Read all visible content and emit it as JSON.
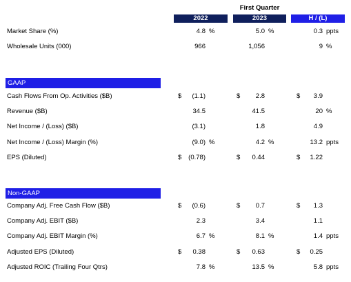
{
  "header": {
    "title": "First Quarter",
    "columns": [
      "2022",
      "2023",
      "H / (L)"
    ]
  },
  "sections": [
    {
      "rows": [
        {
          "label": "Market Share (%)",
          "cells": [
            {
              "v": "4.8",
              "unit": "%"
            },
            {
              "v": "5.0",
              "unit": "%"
            },
            {
              "v": "0.3",
              "unit": "ppts"
            }
          ]
        },
        {
          "label": "Wholesale Units (000)",
          "cells": [
            {
              "v": "966"
            },
            {
              "v": "1,056"
            },
            {
              "v": "9",
              "unit": "%"
            }
          ]
        }
      ]
    },
    {
      "title": "GAAP",
      "rows": [
        {
          "label": "Cash Flows From Op. Activities ($B)",
          "cells": [
            {
              "cur": "$",
              "v": "(1.1)"
            },
            {
              "cur": "$",
              "v": "2.8"
            },
            {
              "cur": "$",
              "v": "3.9"
            }
          ]
        },
        {
          "label": "Revenue ($B)",
          "cells": [
            {
              "v": "34.5"
            },
            {
              "v": "41.5"
            },
            {
              "v": "20",
              "unit": "%"
            }
          ]
        },
        {
          "label": "Net Income / (Loss) ($B)",
          "cells": [
            {
              "v": "(3.1)"
            },
            {
              "v": "1.8"
            },
            {
              "v": "4.9"
            }
          ]
        },
        {
          "label": "Net Income / (Loss) Margin (%)",
          "cells": [
            {
              "v": "(9.0)",
              "unit": "%"
            },
            {
              "v": "4.2",
              "unit": "%"
            },
            {
              "v": "13.2",
              "unit": "ppts"
            }
          ]
        },
        {
          "label": "EPS (Diluted)",
          "cells": [
            {
              "cur": "$",
              "v": "(0.78)"
            },
            {
              "cur": "$",
              "v": "0.44"
            },
            {
              "cur": "$",
              "v": "1.22"
            }
          ]
        }
      ]
    },
    {
      "title": "Non-GAAP",
      "rows": [
        {
          "label": "Company Adj. Free Cash Flow ($B)",
          "cells": [
            {
              "cur": "$",
              "v": "(0.6)"
            },
            {
              "cur": "$",
              "v": "0.7"
            },
            {
              "cur": "$",
              "v": "1.3"
            }
          ]
        },
        {
          "label": "Company Adj. EBIT ($B)",
          "cells": [
            {
              "v": "2.3"
            },
            {
              "v": "3.4"
            },
            {
              "v": "1.1"
            }
          ]
        },
        {
          "label": "Company Adj. EBIT Margin (%)",
          "cells": [
            {
              "v": "6.7",
              "unit": "%"
            },
            {
              "v": "8.1",
              "unit": "%"
            },
            {
              "v": "1.4",
              "unit": "ppts"
            }
          ]
        },
        {
          "label": "Adjusted EPS (Diluted)",
          "cells": [
            {
              "cur": "$",
              "v": "0.38"
            },
            {
              "cur": "$",
              "v": "0.63"
            },
            {
              "cur": "$",
              "v": "0.25"
            }
          ]
        },
        {
          "label": "Adjusted ROIC (Trailing Four Qtrs)",
          "cells": [
            {
              "v": "7.8",
              "unit": "%"
            },
            {
              "v": "13.5",
              "unit": "%"
            },
            {
              "v": "5.8",
              "unit": "ppts"
            }
          ]
        }
      ]
    }
  ]
}
